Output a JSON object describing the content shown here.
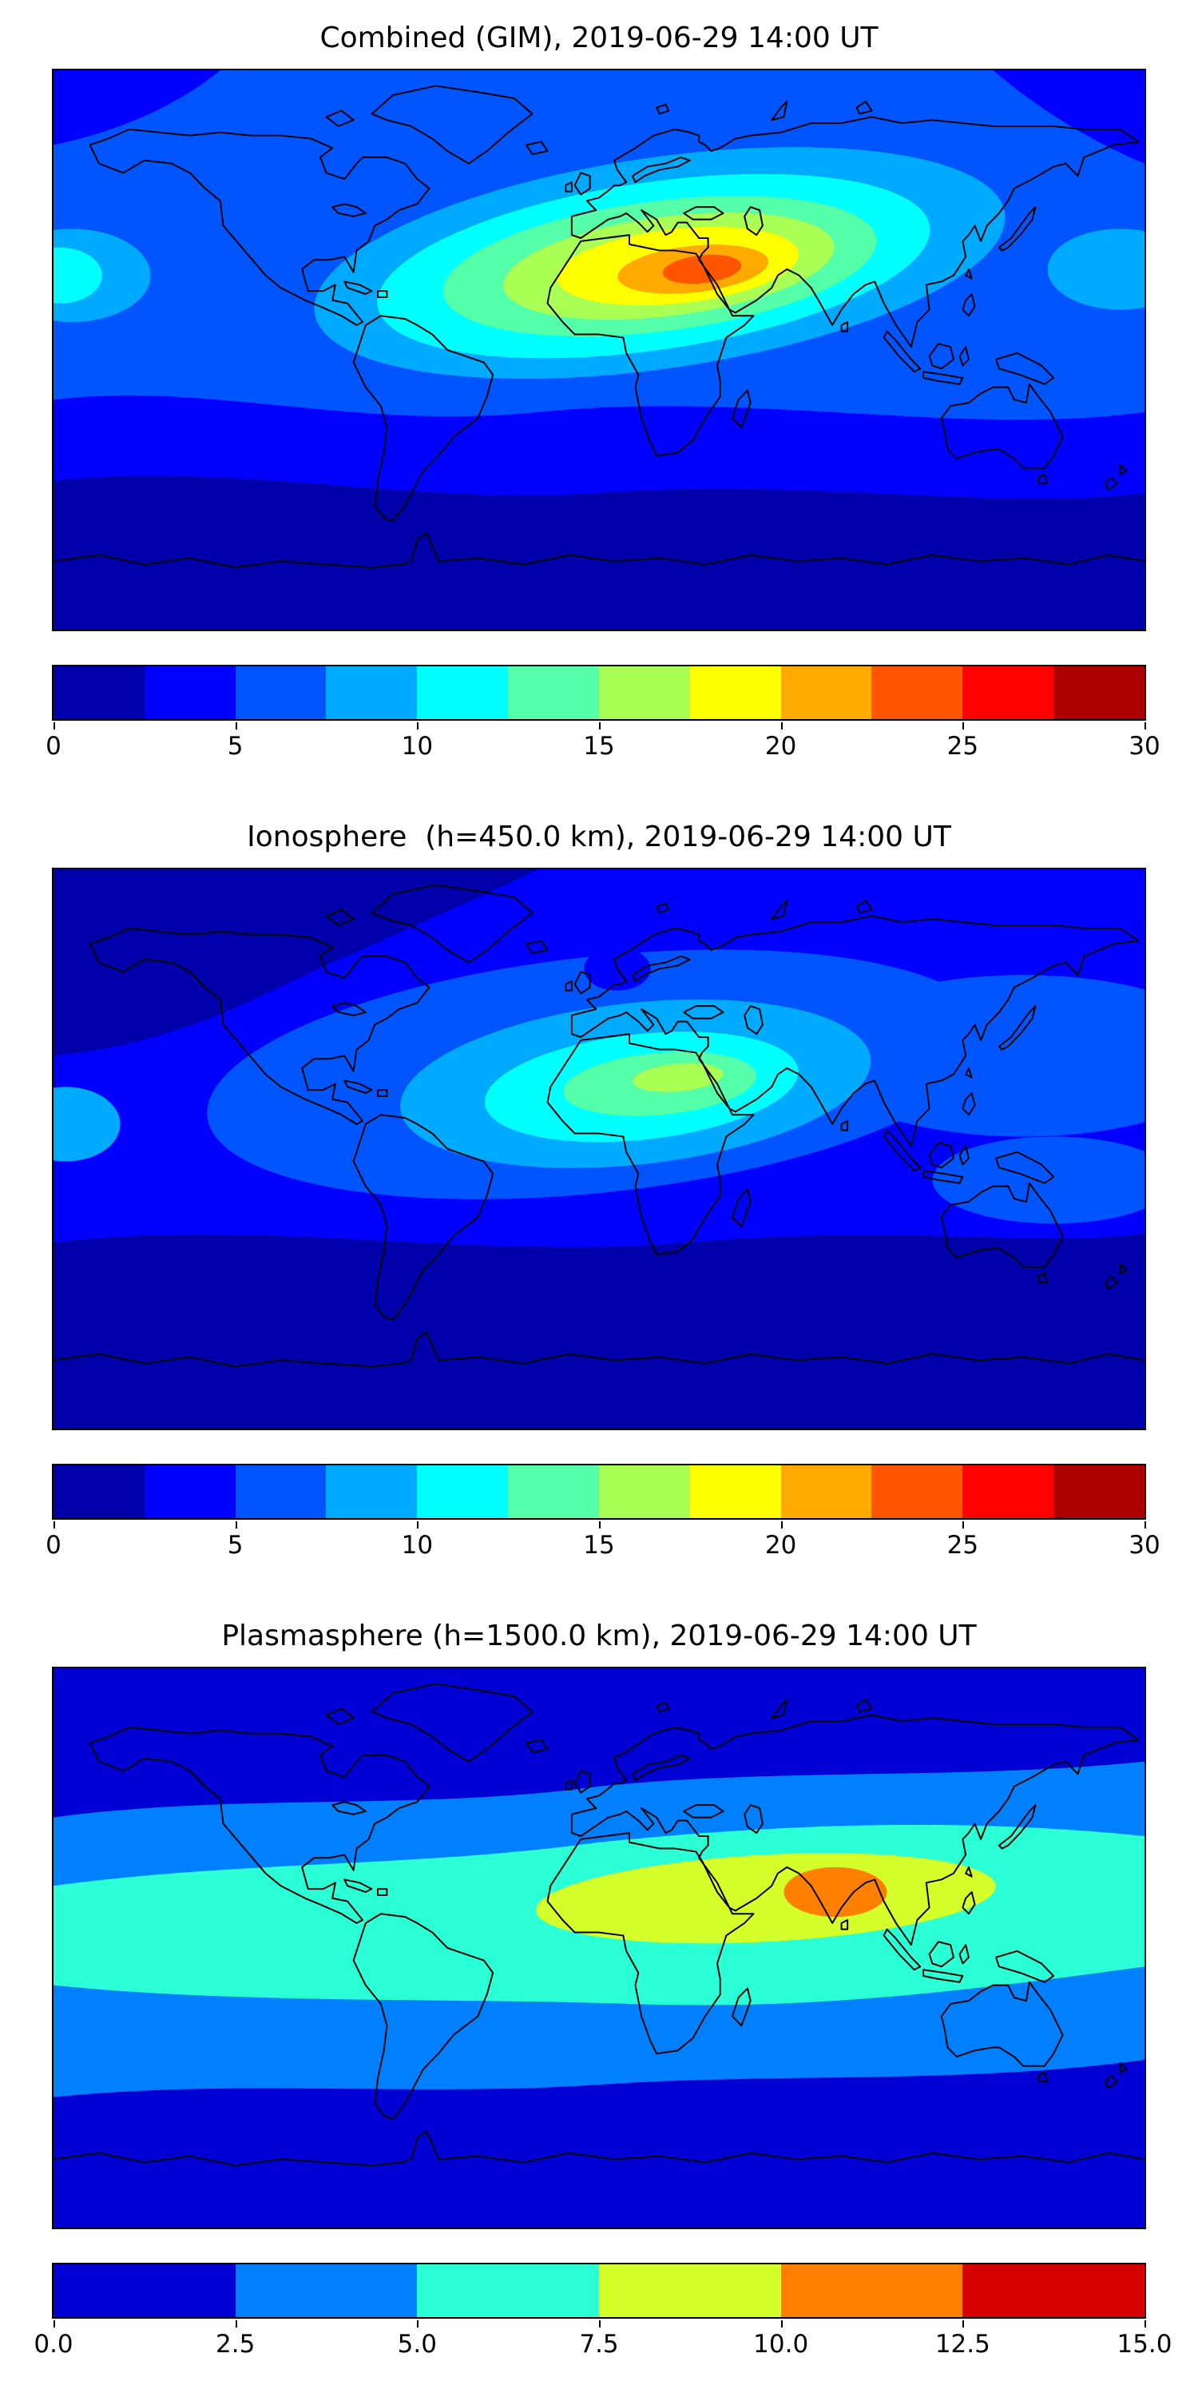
{
  "figure": {
    "background": "#ffffff",
    "text_color": "#000000"
  },
  "panels": [
    {
      "id": "combined",
      "title": "Combined (GIM), 2019-06-29 14:00 UT",
      "colorbar": {
        "min": 0,
        "max": 30,
        "tick_labels": [
          "0",
          "5",
          "10",
          "15",
          "20",
          "25",
          "30"
        ],
        "segment_colors": [
          "#0000AA",
          "#0000FF",
          "#0055FF",
          "#00AAFF",
          "#00FFFF",
          "#55FFAA",
          "#AAFF55",
          "#FFFF00",
          "#FFAA00",
          "#FF5500",
          "#FF0000",
          "#AA0000"
        ]
      }
    },
    {
      "id": "ionosphere",
      "title": "Ionosphere  (h=450.0 km), 2019-06-29 14:00 UT",
      "colorbar": {
        "min": 0,
        "max": 30,
        "tick_labels": [
          "0",
          "5",
          "10",
          "15",
          "20",
          "25",
          "30"
        ],
        "segment_colors": [
          "#0000AA",
          "#0000FF",
          "#0055FF",
          "#00AAFF",
          "#00FFFF",
          "#55FFAA",
          "#AAFF55",
          "#FFFF00",
          "#FFAA00",
          "#FF5500",
          "#FF0000",
          "#AA0000"
        ]
      }
    },
    {
      "id": "plasmasphere",
      "title": "Plasmasphere (h=1500.0 km), 2019-06-29 14:00 UT",
      "colorbar": {
        "min": 0,
        "max": 15,
        "tick_labels": [
          "0.0",
          "2.5",
          "5.0",
          "7.5",
          "10.0",
          "12.5",
          "15.0"
        ],
        "segment_colors": [
          "#0000D5",
          "#0080FF",
          "#2BFFD5",
          "#D5FF2B",
          "#FF8000",
          "#D50000"
        ]
      }
    }
  ],
  "chart_data": [
    {
      "type": "heatmap",
      "title": "Combined (GIM), 2019-06-29 14:00 UT",
      "projection": "equirectangular world map",
      "x_range_lon_deg": [
        -180,
        180
      ],
      "y_range_lat_deg": [
        -90,
        90
      ],
      "value_range": [
        0,
        30
      ],
      "contour_step": 2.5,
      "colormap": "jet (discrete, 12 levels)",
      "peak": {
        "lon": 30,
        "lat": 25,
        "value": 27.5
      },
      "notes": "Elongated high-TEC enhancement (15-27.5) stretched across the Atlantic, North Africa and the Middle East near 25N; values fall to 2.5-5 over mid-southern oceans and below 2.5 at high southern latitudes."
    },
    {
      "type": "heatmap",
      "title": "Ionosphere  (h=450.0 km), 2019-06-29 14:00 UT",
      "projection": "equirectangular world map",
      "x_range_lon_deg": [
        -180,
        180
      ],
      "y_range_lat_deg": [
        -90,
        90
      ],
      "value_range": [
        0,
        30
      ],
      "contour_step": 2.5,
      "colormap": "jet (discrete, 12 levels)",
      "peak": {
        "lon": 28,
        "lat": 22,
        "value": 17.5
      },
      "notes": "Moderate enhancement (10-17.5) centered over northeast Africa / Arabia near 22N; dark low values (<2.5) over North America, the North Atlantic and high southern latitudes."
    },
    {
      "type": "heatmap",
      "title": "Plasmasphere (h=1500.0 km), 2019-06-29 14:00 UT",
      "projection": "equirectangular world map",
      "x_range_lon_deg": [
        -180,
        180
      ],
      "y_range_lat_deg": [
        -90,
        90
      ],
      "value_range": [
        0,
        15
      ],
      "contour_step": 2.5,
      "colormap": "jet (discrete, 6 levels)",
      "peak": {
        "lon": 78,
        "lat": 17,
        "value": 12
      },
      "notes": "Broad equatorial belt of 5-7.5 spanning all longitudes, a 7.5-10 tongue from West Africa to Southeast Asia, and a 10-12.5 maximum over India; values below 2.5 poleward of about 55 degrees."
    }
  ]
}
